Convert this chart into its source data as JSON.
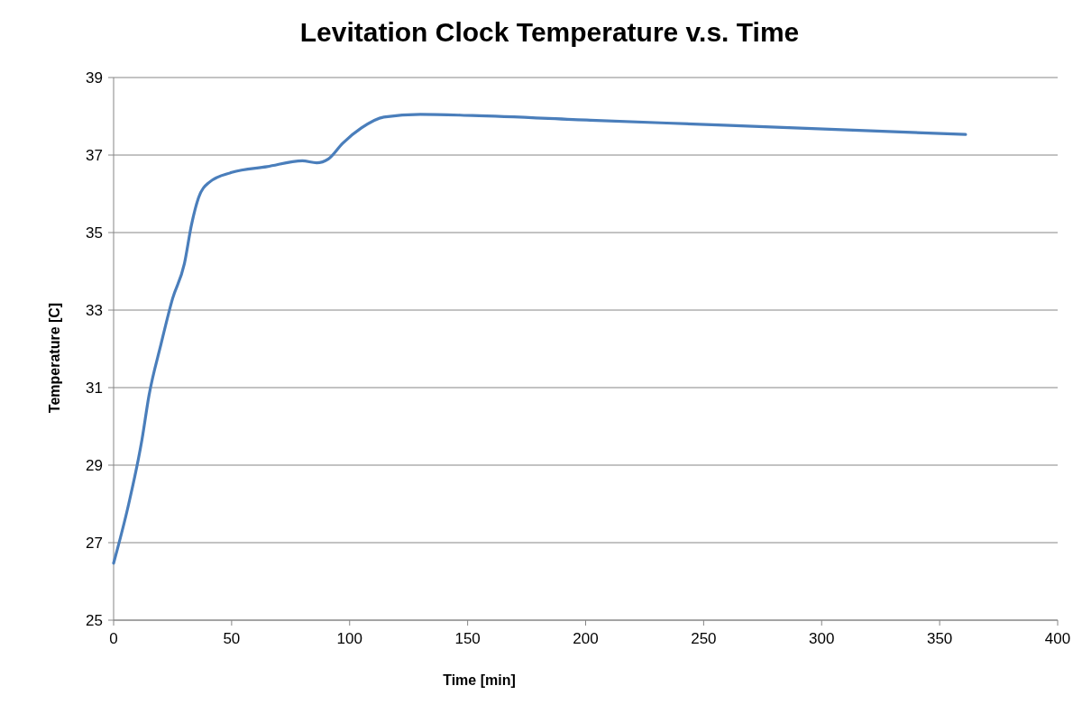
{
  "chart_data": {
    "type": "line",
    "title": "Levitation Clock Temperature v.s. Time",
    "xlabel": "Time [min]",
    "ylabel": "Temperature [C]",
    "xlim": [
      0,
      400
    ],
    "xticks": [
      0,
      50,
      100,
      150,
      200,
      250,
      300,
      350,
      400
    ],
    "ylim": [
      25,
      39
    ],
    "yticks": [
      25,
      27,
      29,
      31,
      33,
      35,
      37,
      39
    ],
    "grid": "y",
    "marker": "none",
    "line_style": "solid",
    "series": [
      {
        "color": "#4a7ebb",
        "x": [
          0,
          6.4,
          12,
          15,
          20,
          25,
          30,
          33,
          36,
          40.6,
          50,
          65,
          80,
          86,
          91,
          97,
          105,
          114.5,
          130,
          152,
          202,
          258.6,
          361
        ],
        "values": [
          26.47,
          28.0,
          29.65,
          30.8,
          32.1,
          33.3,
          34.2,
          35.2,
          35.9,
          36.3,
          36.55,
          36.7,
          36.85,
          36.8,
          36.9,
          37.3,
          37.7,
          37.98,
          38.05,
          38.02,
          37.9,
          37.77,
          37.53
        ]
      }
    ]
  }
}
